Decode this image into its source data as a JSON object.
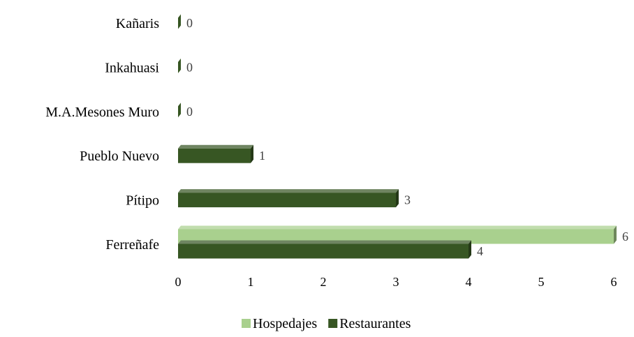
{
  "chart_data": {
    "type": "bar",
    "orientation": "horizontal",
    "categories": [
      "Kañaris",
      "Inkahuasi",
      "M.A.Mesones Muro",
      "Pueblo Nuevo",
      "Pítipo",
      "Ferreñafe"
    ],
    "series": [
      {
        "name": "Hospedajes",
        "values": [
          null,
          null,
          null,
          null,
          null,
          6
        ],
        "color": "#a9d08e"
      },
      {
        "name": "Restaurantes",
        "values": [
          0,
          0,
          0,
          1,
          3,
          4
        ],
        "color": "#375623"
      }
    ],
    "xlim": [
      0,
      6
    ],
    "xticks": [
      0,
      1,
      2,
      3,
      4,
      5,
      6
    ],
    "grid": false,
    "legend_position": "bottom",
    "style": "3d"
  }
}
